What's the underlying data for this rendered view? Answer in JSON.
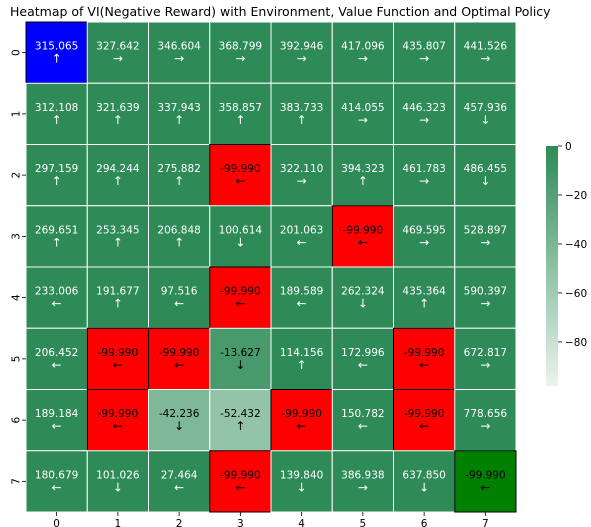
{
  "chart_data": {
    "type": "heatmap",
    "title": "Heatmap of VI(Negative Reward) with Environment, Value Function and Optimal Policy",
    "xlabel": "",
    "ylabel": "",
    "x_ticks": [
      "0",
      "1",
      "2",
      "3",
      "4",
      "5",
      "6",
      "7"
    ],
    "y_ticks": [
      "0",
      "1",
      "2",
      "3",
      "4",
      "5",
      "6",
      "7"
    ],
    "values": [
      [
        315.065,
        327.642,
        346.604,
        368.799,
        392.946,
        417.096,
        435.807,
        441.526
      ],
      [
        312.108,
        321.639,
        337.943,
        358.857,
        383.733,
        414.055,
        446.323,
        457.936
      ],
      [
        297.159,
        294.244,
        275.882,
        -99.99,
        322.11,
        394.323,
        461.783,
        486.455
      ],
      [
        269.651,
        253.345,
        206.848,
        100.614,
        201.063,
        -99.99,
        469.595,
        528.897
      ],
      [
        233.006,
        191.677,
        97.516,
        -99.99,
        189.589,
        262.324,
        435.364,
        590.397
      ],
      [
        206.452,
        -99.99,
        -99.99,
        -13.627,
        114.156,
        172.996,
        -99.99,
        672.817
      ],
      [
        189.184,
        -99.99,
        -42.236,
        -52.432,
        -99.99,
        150.782,
        -99.99,
        778.656
      ],
      [
        180.679,
        101.026,
        27.464,
        -99.99,
        139.84,
        386.938,
        637.85,
        -99.99
      ]
    ],
    "policy": [
      [
        "↑",
        "→",
        "→",
        "→",
        "→",
        "→",
        "→",
        "→"
      ],
      [
        "↑",
        "↑",
        "↑",
        "↑",
        "↑",
        "→",
        "→",
        "↓"
      ],
      [
        "↑",
        "↑",
        "↑",
        "←",
        "→",
        "↑",
        "→",
        "↓"
      ],
      [
        "↑",
        "↑",
        "↑",
        "↓",
        "←",
        "←",
        "→",
        "→"
      ],
      [
        "←",
        "↑",
        "←",
        "←",
        "←",
        "↓",
        "↑",
        "→"
      ],
      [
        "←",
        "←",
        "←",
        "↓",
        "↑",
        "←",
        "←",
        "→"
      ],
      [
        "←",
        "←",
        "↓",
        "↑",
        "←",
        "←",
        "←",
        "→"
      ],
      [
        "←",
        "↓",
        "←",
        "←",
        "↓",
        "→",
        "↓",
        "←"
      ]
    ],
    "cell_types": [
      [
        "start",
        "value",
        "value",
        "value",
        "value",
        "value",
        "value",
        "value"
      ],
      [
        "value",
        "value",
        "value",
        "value",
        "value",
        "value",
        "value",
        "value"
      ],
      [
        "value",
        "value",
        "value",
        "obstacle",
        "value",
        "value",
        "value",
        "value"
      ],
      [
        "value",
        "value",
        "value",
        "value",
        "value",
        "obstacle",
        "value",
        "value"
      ],
      [
        "value",
        "value",
        "value",
        "obstacle",
        "value",
        "value",
        "value",
        "value"
      ],
      [
        "value",
        "obstacle",
        "obstacle",
        "value",
        "value",
        "value",
        "obstacle",
        "value"
      ],
      [
        "value",
        "obstacle",
        "value",
        "value",
        "obstacle",
        "value",
        "obstacle",
        "value"
      ],
      [
        "value",
        "value",
        "value",
        "obstacle",
        "value",
        "value",
        "value",
        "goal"
      ]
    ],
    "colormap": {
      "high": "#2e8b57",
      "low": "#ebf4ee",
      "vmin": -98,
      "vmax": 0
    },
    "special_colors": {
      "start": "#0000ff",
      "obstacle": "#ff0000",
      "goal": "#008000"
    },
    "colorbar": {
      "ticks": [
        0,
        -20,
        -40,
        -60,
        -80
      ],
      "range": [
        -98,
        0
      ]
    }
  }
}
